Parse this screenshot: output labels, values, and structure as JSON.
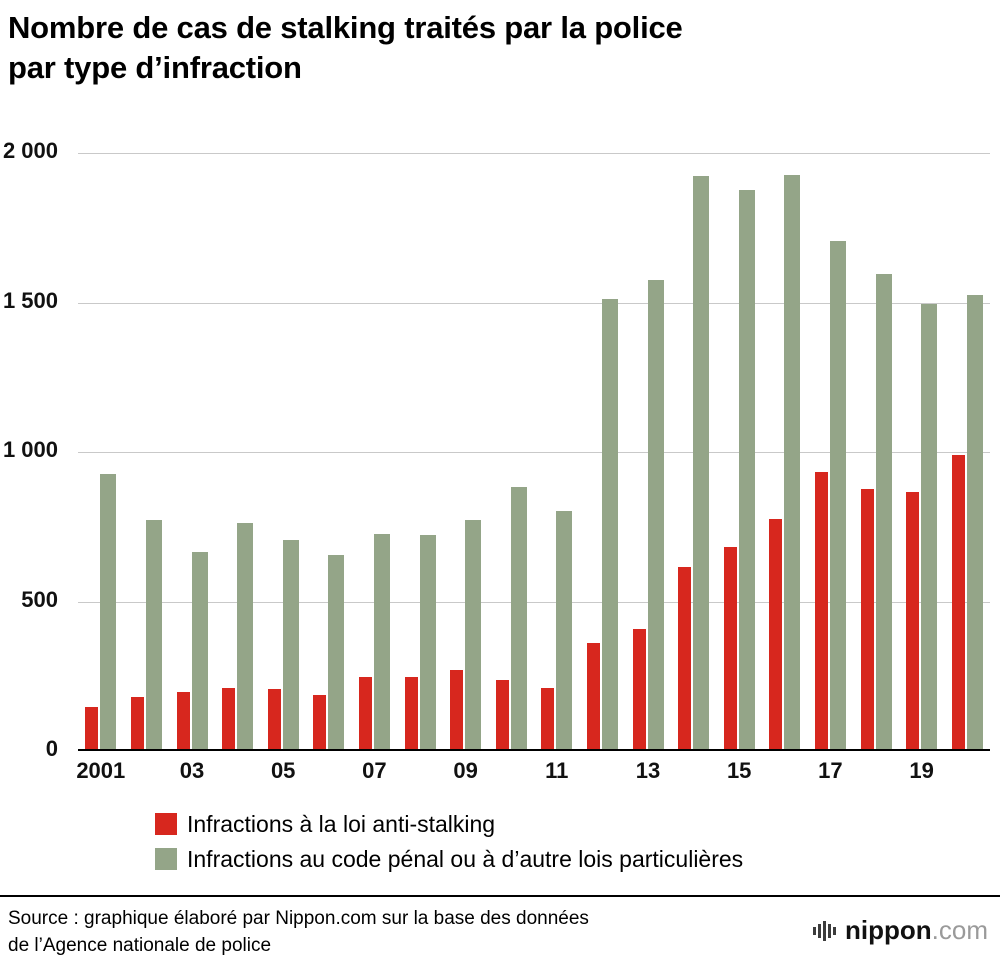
{
  "title": {
    "line1": "Nombre de cas de stalking traités par la police",
    "line2": "par type d’infraction"
  },
  "colors": {
    "red": "#d7271e",
    "green": "#94a588",
    "grid": "#c9c9c9",
    "axis": "#000000"
  },
  "chart_data": {
    "type": "bar",
    "title": "Nombre de cas de stalking traités par la police par type d’infraction",
    "categories": [
      2001,
      2002,
      2003,
      2004,
      2005,
      2006,
      2007,
      2008,
      2009,
      2010,
      2011,
      2012,
      2013,
      2014,
      2015,
      2016,
      2017,
      2018,
      2019,
      2020
    ],
    "series": [
      {
        "name": "Infractions à la loi anti-stalking",
        "color_key": "red",
        "values": [
          140,
          175,
          190,
          205,
          200,
          180,
          240,
          240,
          265,
          230,
          205,
          355,
          400,
          610,
          675,
          770,
          925,
          870,
          860,
          985
        ]
      },
      {
        "name": "Infractions au code pénal ou à d’autre lois particulières",
        "color_key": "green",
        "values": [
          920,
          765,
          660,
          755,
          700,
          650,
          720,
          715,
          765,
          875,
          795,
          1505,
          1570,
          1915,
          1870,
          1920,
          1700,
          1590,
          1490,
          1520
        ]
      }
    ],
    "xlabel": "",
    "ylabel": "",
    "ylim": [
      0,
      2000
    ],
    "yticks": [
      0,
      500,
      1000,
      1500,
      2000
    ],
    "ytick_labels": [
      "0",
      "500",
      "1 000",
      "1 500",
      "2 000"
    ],
    "xtick_labels": [
      "2001",
      "03",
      "05",
      "07",
      "09",
      "11",
      "13",
      "15",
      "17",
      "19"
    ],
    "xtick_positions": [
      0,
      2,
      4,
      6,
      8,
      10,
      12,
      14,
      16,
      18
    ],
    "grid": true,
    "legend_position": "bottom-left"
  },
  "legend": {
    "items": [
      {
        "label": "Infractions à la loi anti-stalking",
        "color_key": "red"
      },
      {
        "label": "Infractions au code pénal ou à d’autre lois particulières",
        "color_key": "green"
      }
    ]
  },
  "source": {
    "line1": "Source : graphique élaboré par Nippon.com sur la base des données",
    "line2": "de l’Agence nationale de police"
  },
  "logo": {
    "name": "nippon",
    "suffix": ".com"
  }
}
